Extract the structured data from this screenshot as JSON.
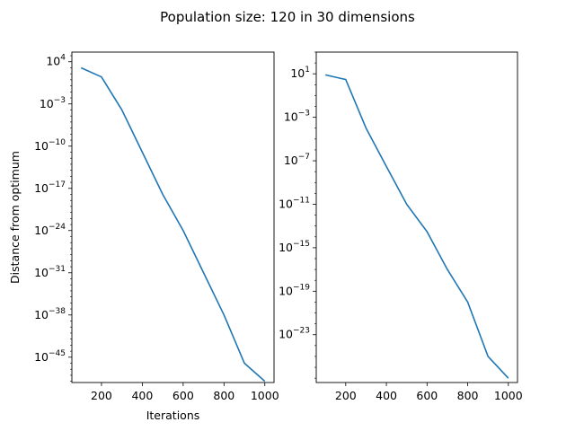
{
  "figure": {
    "suptitle": "Population size: 120 in 30 dimensions",
    "line_color": "#1f77b4"
  },
  "chart_data": [
    {
      "type": "line",
      "xlabel": "Iterations",
      "ylabel": "Distance from optimum",
      "yscale": "log",
      "xlim": [
        55,
        1045
      ],
      "ylim_log10": [
        -49.2,
        5.6
      ],
      "xticks": [
        200,
        400,
        600,
        800,
        1000
      ],
      "yticks": [
        {
          "exp": 4,
          "base": "10",
          "sup": "4"
        },
        {
          "exp": -3,
          "base": "10",
          "sup": "−3"
        },
        {
          "exp": -10,
          "base": "10",
          "sup": "−10"
        },
        {
          "exp": -17,
          "base": "10",
          "sup": "−17"
        },
        {
          "exp": -24,
          "base": "10",
          "sup": "−24"
        },
        {
          "exp": -31,
          "base": "10",
          "sup": "−31"
        },
        {
          "exp": -38,
          "base": "10",
          "sup": "−38"
        },
        {
          "exp": -45,
          "base": "10",
          "sup": "−45"
        }
      ],
      "series": [
        {
          "x": [
            100,
            200,
            300,
            400,
            500,
            600,
            700,
            800,
            900,
            1000
          ],
          "y": [
            1000.0,
            30.0,
            0.0001,
            1e-11,
            1e-18,
            1e-24,
            1e-31,
            1e-38,
            1e-46,
            1e-49
          ]
        }
      ]
    },
    {
      "type": "line",
      "xlabel": "",
      "ylabel": "",
      "yscale": "log",
      "xlim": [
        55,
        1045
      ],
      "ylim_log10": [
        -27.4,
        3.0
      ],
      "xticks": [
        200,
        400,
        600,
        800,
        1000
      ],
      "yticks": [
        {
          "exp": 1,
          "base": "10",
          "sup": "1"
        },
        {
          "exp": -3,
          "base": "10",
          "sup": "−3"
        },
        {
          "exp": -7,
          "base": "10",
          "sup": "−7"
        },
        {
          "exp": -11,
          "base": "10",
          "sup": "−11"
        },
        {
          "exp": -15,
          "base": "10",
          "sup": "−15"
        },
        {
          "exp": -19,
          "base": "10",
          "sup": "−19"
        },
        {
          "exp": -23,
          "base": "10",
          "sup": "−23"
        }
      ],
      "series": [
        {
          "x": [
            100,
            200,
            300,
            400,
            500,
            600,
            700,
            800,
            900,
            1000
          ],
          "y": [
            8,
            3,
            0.0001,
            3e-08,
            1e-11,
            3e-14,
            1e-17,
            1e-20,
            1e-25,
            1e-27
          ]
        }
      ]
    }
  ]
}
